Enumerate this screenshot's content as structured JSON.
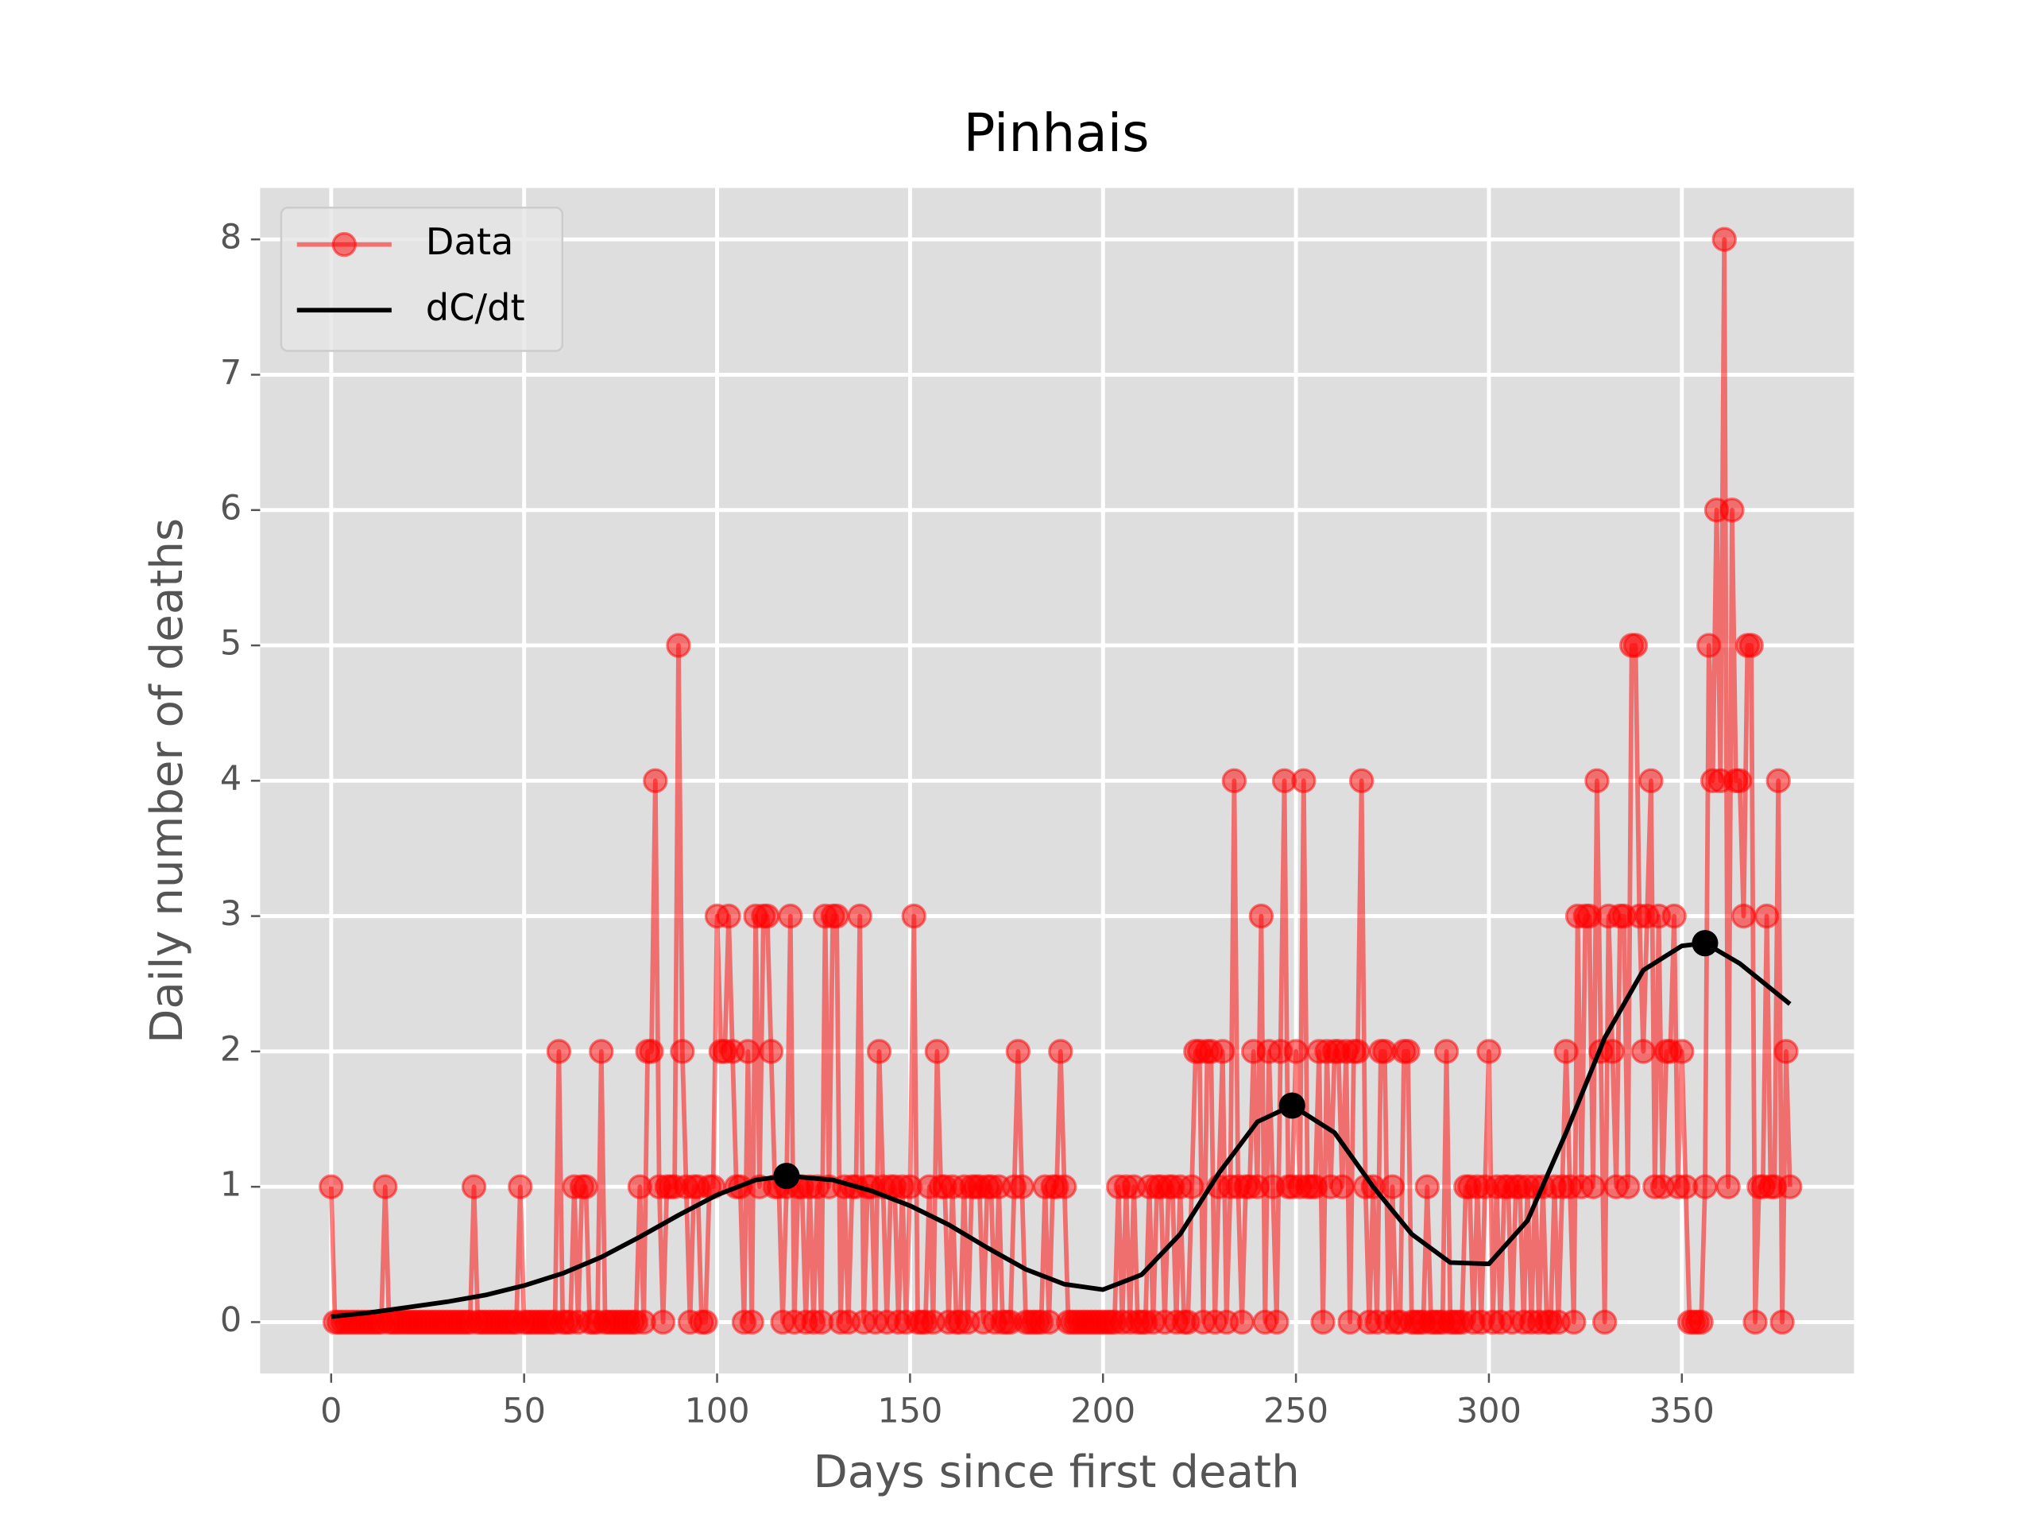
{
  "chart_data": {
    "type": "line",
    "title": "Pinhais",
    "xlabel": "Days since first death",
    "ylabel": "Daily number of deaths",
    "xlim": [
      -18.4,
      394.6
    ],
    "ylim": [
      -0.38,
      8.38
    ],
    "xticks": [
      0,
      50,
      100,
      150,
      200,
      250,
      300,
      350
    ],
    "yticks": [
      0,
      1,
      2,
      3,
      4,
      5,
      6,
      7,
      8
    ],
    "grid": true,
    "legend": "upper left",
    "series": [
      {
        "name": "Data",
        "color": "#ff0000",
        "marker": "o",
        "x": [
          0,
          1,
          2,
          3,
          4,
          5,
          6,
          7,
          8,
          9,
          10,
          11,
          12,
          13,
          14,
          15,
          16,
          17,
          18,
          19,
          20,
          21,
          22,
          23,
          24,
          25,
          26,
          27,
          28,
          29,
          30,
          31,
          32,
          33,
          34,
          35,
          36,
          37,
          38,
          39,
          40,
          41,
          42,
          43,
          44,
          45,
          46,
          47,
          48,
          49,
          50,
          51,
          52,
          53,
          54,
          55,
          56,
          57,
          58,
          59,
          60,
          61,
          62,
          63,
          64,
          65,
          66,
          67,
          68,
          69,
          70,
          71,
          72,
          73,
          74,
          75,
          76,
          77,
          78,
          79,
          80,
          81,
          82,
          83,
          84,
          85,
          86,
          87,
          88,
          89,
          90,
          91,
          92,
          93,
          94,
          95,
          96,
          97,
          98,
          99,
          100,
          101,
          102,
          103,
          104,
          105,
          106,
          107,
          108,
          109,
          110,
          111,
          112,
          113,
          114,
          115,
          116,
          117,
          118,
          119,
          120,
          121,
          122,
          123,
          124,
          125,
          126,
          127,
          128,
          129,
          130,
          131,
          132,
          133,
          134,
          135,
          136,
          137,
          138,
          139,
          140,
          141,
          142,
          143,
          144,
          145,
          146,
          147,
          148,
          149,
          150,
          151,
          152,
          153,
          154,
          155,
          156,
          157,
          158,
          159,
          160,
          161,
          162,
          163,
          164,
          165,
          166,
          167,
          168,
          169,
          170,
          171,
          172,
          173,
          174,
          175,
          176,
          177,
          178,
          179,
          180,
          181,
          182,
          183,
          184,
          185,
          186,
          187,
          188,
          189,
          190,
          191,
          192,
          193,
          194,
          195,
          196,
          197,
          198,
          199,
          200,
          201,
          202,
          203,
          204,
          205,
          206,
          207,
          208,
          209,
          210,
          211,
          212,
          213,
          214,
          215,
          216,
          217,
          218,
          219,
          220,
          221,
          222,
          223,
          224,
          225,
          226,
          227,
          228,
          229,
          230,
          231,
          232,
          233,
          234,
          235,
          236,
          237,
          238,
          239,
          240,
          241,
          242,
          243,
          244,
          245,
          246,
          247,
          248,
          249,
          250,
          251,
          252,
          253,
          254,
          255,
          256,
          257,
          258,
          259,
          260,
          261,
          262,
          263,
          264,
          265,
          266,
          267,
          268,
          269,
          270,
          271,
          272,
          273,
          274,
          275,
          276,
          277,
          278,
          279,
          280,
          281,
          282,
          283,
          284,
          285,
          286,
          287,
          288,
          289,
          290,
          291,
          292,
          293,
          294,
          295,
          296,
          297,
          298,
          299,
          300,
          301,
          302,
          303,
          304,
          305,
          306,
          307,
          308,
          309,
          310,
          311,
          312,
          313,
          314,
          315,
          316,
          317,
          318,
          319,
          320,
          321,
          322,
          323,
          324,
          325,
          326,
          327,
          328,
          329,
          330,
          331,
          332,
          333,
          334,
          335,
          336,
          337,
          338,
          339,
          340,
          341,
          342,
          343,
          344,
          345,
          346,
          347,
          348,
          349,
          350,
          351,
          352,
          353,
          354,
          355,
          356,
          357,
          358,
          359,
          360,
          361,
          362,
          363,
          364,
          365,
          366,
          367,
          368,
          369,
          370,
          371,
          372,
          373,
          374,
          375,
          376,
          377,
          378
        ],
        "values": [
          1,
          0,
          0,
          0,
          0,
          0,
          0,
          0,
          0,
          0,
          0,
          0,
          0,
          0,
          1,
          0,
          0,
          0,
          0,
          0,
          0,
          0,
          0,
          0,
          0,
          0,
          0,
          0,
          0,
          0,
          0,
          0,
          0,
          0,
          0,
          0,
          0,
          1,
          0,
          0,
          0,
          0,
          0,
          0,
          0,
          0,
          0,
          0,
          0,
          1,
          0,
          0,
          0,
          0,
          0,
          0,
          0,
          0,
          0,
          2,
          0,
          0,
          0,
          1,
          0,
          1,
          1,
          0,
          0,
          0,
          2,
          0,
          0,
          0,
          0,
          0,
          0,
          0,
          0,
          0,
          1,
          0,
          2,
          2,
          4,
          1,
          0,
          1,
          1,
          1,
          5,
          2,
          1,
          0,
          1,
          1,
          0,
          0,
          1,
          1,
          3,
          2,
          2,
          3,
          2,
          1,
          1,
          0,
          2,
          0,
          3,
          1,
          3,
          3,
          2,
          1,
          1,
          0,
          1,
          3,
          0,
          1,
          1,
          0,
          1,
          0,
          1,
          0,
          3,
          1,
          3,
          3,
          0,
          1,
          0,
          1,
          1,
          3,
          0,
          1,
          1,
          0,
          2,
          1,
          0,
          1,
          1,
          0,
          1,
          0,
          1,
          3,
          0,
          0,
          0,
          1,
          0,
          2,
          1,
          1,
          0,
          1,
          0,
          0,
          1,
          0,
          1,
          1,
          1,
          0,
          1,
          1,
          0,
          1,
          0,
          0,
          0,
          1,
          2,
          1,
          0,
          0,
          0,
          0,
          0,
          1,
          0,
          1,
          1,
          2,
          1,
          0,
          0,
          0,
          0,
          0,
          0,
          0,
          0,
          0,
          0,
          0,
          0,
          0,
          1,
          0,
          1,
          0,
          1,
          0,
          0,
          0,
          1,
          0,
          1,
          1,
          0,
          1,
          1,
          0,
          1,
          0,
          0,
          1,
          2,
          2,
          0,
          2,
          2,
          0,
          1,
          2,
          0,
          1,
          4,
          1,
          0,
          1,
          1,
          2,
          1,
          3,
          0,
          2,
          1,
          0,
          2,
          4,
          1,
          1,
          2,
          1,
          4,
          1,
          1,
          1,
          2,
          0,
          2,
          1,
          2,
          2,
          1,
          2,
          0,
          2,
          2,
          4,
          1,
          0,
          1,
          0,
          2,
          2,
          0,
          1,
          0,
          0,
          2,
          2,
          0,
          0,
          0,
          0,
          1,
          0,
          0,
          0,
          0,
          2,
          0,
          0,
          0,
          0,
          1,
          1,
          0,
          1,
          0,
          1,
          2,
          0,
          1,
          0,
          1,
          1,
          0,
          1,
          1,
          0,
          1,
          0,
          1,
          0,
          1,
          0,
          0,
          1,
          0,
          1,
          2,
          1,
          0,
          3,
          1,
          3,
          3,
          1,
          4,
          2,
          0,
          3,
          2,
          1,
          3,
          3,
          1,
          5,
          5,
          3,
          2,
          3,
          4,
          1,
          3,
          1,
          2,
          2,
          3,
          1,
          2,
          1,
          0,
          0,
          0,
          0,
          1,
          5,
          4,
          6,
          4,
          8,
          1,
          6,
          4,
          4,
          3,
          5,
          5,
          0,
          1,
          1,
          3,
          1,
          1,
          4,
          0,
          2,
          1
        ]
      },
      {
        "name": "dC/dt",
        "color": "#000000",
        "x": [
          0,
          10,
          20,
          30,
          40,
          50,
          60,
          70,
          80,
          90,
          100,
          110,
          118,
          130,
          140,
          150,
          160,
          170,
          180,
          190,
          200,
          210,
          220,
          230,
          240,
          249,
          260,
          270,
          280,
          290,
          300,
          310,
          320,
          330,
          340,
          350,
          356,
          365,
          378
        ],
        "values": [
          0.04,
          0.07,
          0.11,
          0.15,
          0.2,
          0.27,
          0.36,
          0.48,
          0.63,
          0.79,
          0.94,
          1.05,
          1.08,
          1.05,
          0.97,
          0.86,
          0.72,
          0.55,
          0.39,
          0.28,
          0.24,
          0.35,
          0.65,
          1.1,
          1.48,
          1.6,
          1.4,
          1.0,
          0.65,
          0.44,
          0.43,
          0.75,
          1.4,
          2.1,
          2.6,
          2.78,
          2.8,
          2.65,
          2.35
        ]
      }
    ],
    "peaks": {
      "color": "#000000",
      "x": [
        118,
        249,
        356
      ],
      "values": [
        1.08,
        1.6,
        2.8
      ]
    }
  }
}
